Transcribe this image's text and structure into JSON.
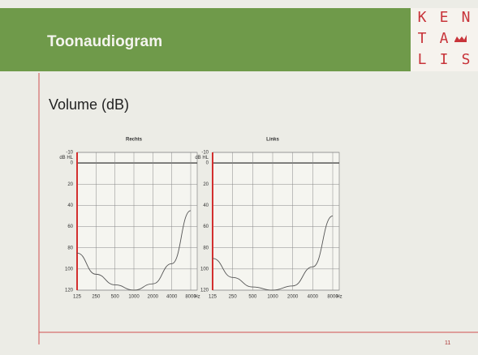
{
  "header": {
    "title": "Toonaudiogram",
    "logo": [
      "K",
      "E",
      "N",
      "T",
      "A",
      "L",
      "I",
      "S"
    ]
  },
  "subtitle": "Volume (dB)",
  "page_number": "11",
  "chart_data": [
    {
      "type": "line",
      "title": "Rechts",
      "x_label": "Hz",
      "y_label": "dB HL",
      "log_x": true,
      "grid": true,
      "x": [
        125,
        250,
        500,
        1000,
        2000,
        4000,
        8000
      ],
      "series": [
        {
          "color": "#555555",
          "values": [
            85,
            105,
            115,
            120,
            114,
            95,
            45
          ]
        }
      ],
      "xlim": [
        125,
        8000
      ],
      "xticks": [
        125,
        250,
        500,
        1000,
        2000,
        4000,
        8000
      ],
      "ylim": [
        -10,
        120
      ],
      "yticks": [
        -10,
        0,
        20,
        40,
        60,
        80,
        100,
        120
      ]
    },
    {
      "type": "line",
      "title": "Links",
      "x_label": "Hz",
      "y_label": "dB HL",
      "log_x": true,
      "grid": true,
      "x": [
        125,
        250,
        500,
        1000,
        2000,
        4000,
        8000
      ],
      "series": [
        {
          "color": "#555555",
          "values": [
            90,
            108,
            117,
            120,
            116,
            98,
            50
          ]
        }
      ],
      "xlim": [
        125,
        8000
      ],
      "xticks": [
        125,
        250,
        500,
        1000,
        2000,
        4000,
        8000
      ],
      "ylim": [
        -10,
        120
      ],
      "yticks": [
        -10,
        0,
        20,
        40,
        60,
        80,
        100,
        120
      ]
    }
  ]
}
